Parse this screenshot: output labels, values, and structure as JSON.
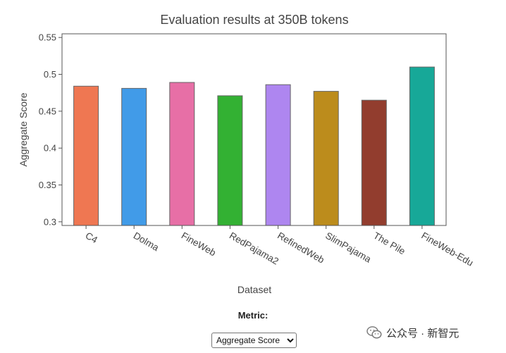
{
  "chart_data": {
    "type": "bar",
    "title": "Evaluation results at 350B tokens",
    "xlabel": "Dataset",
    "ylabel": "Aggregate Score",
    "ylim": [
      0.295,
      0.555
    ],
    "yticks": [
      "0.3",
      "0.35",
      "0.4",
      "0.45",
      "0.5",
      "0.55"
    ],
    "categories": [
      "C4",
      "Dolma",
      "FineWeb",
      "RedPajama2",
      "RefinedWeb",
      "SlimPajama",
      "The Pile",
      "FineWeb-Edu"
    ],
    "values": [
      0.484,
      0.481,
      0.489,
      0.471,
      0.486,
      0.477,
      0.465,
      0.51
    ],
    "colors": [
      "#ef7752",
      "#419be8",
      "#e76fa6",
      "#33b133",
      "#ae86f0",
      "#bc8c1c",
      "#923d2e",
      "#17a898"
    ],
    "grid": false,
    "legend": "none"
  },
  "controls": {
    "metric_label": "Metric:",
    "metric_selected": "Aggregate Score"
  },
  "watermark": {
    "text": "公众号 · 新智元",
    "icon": "wechat-icon"
  }
}
